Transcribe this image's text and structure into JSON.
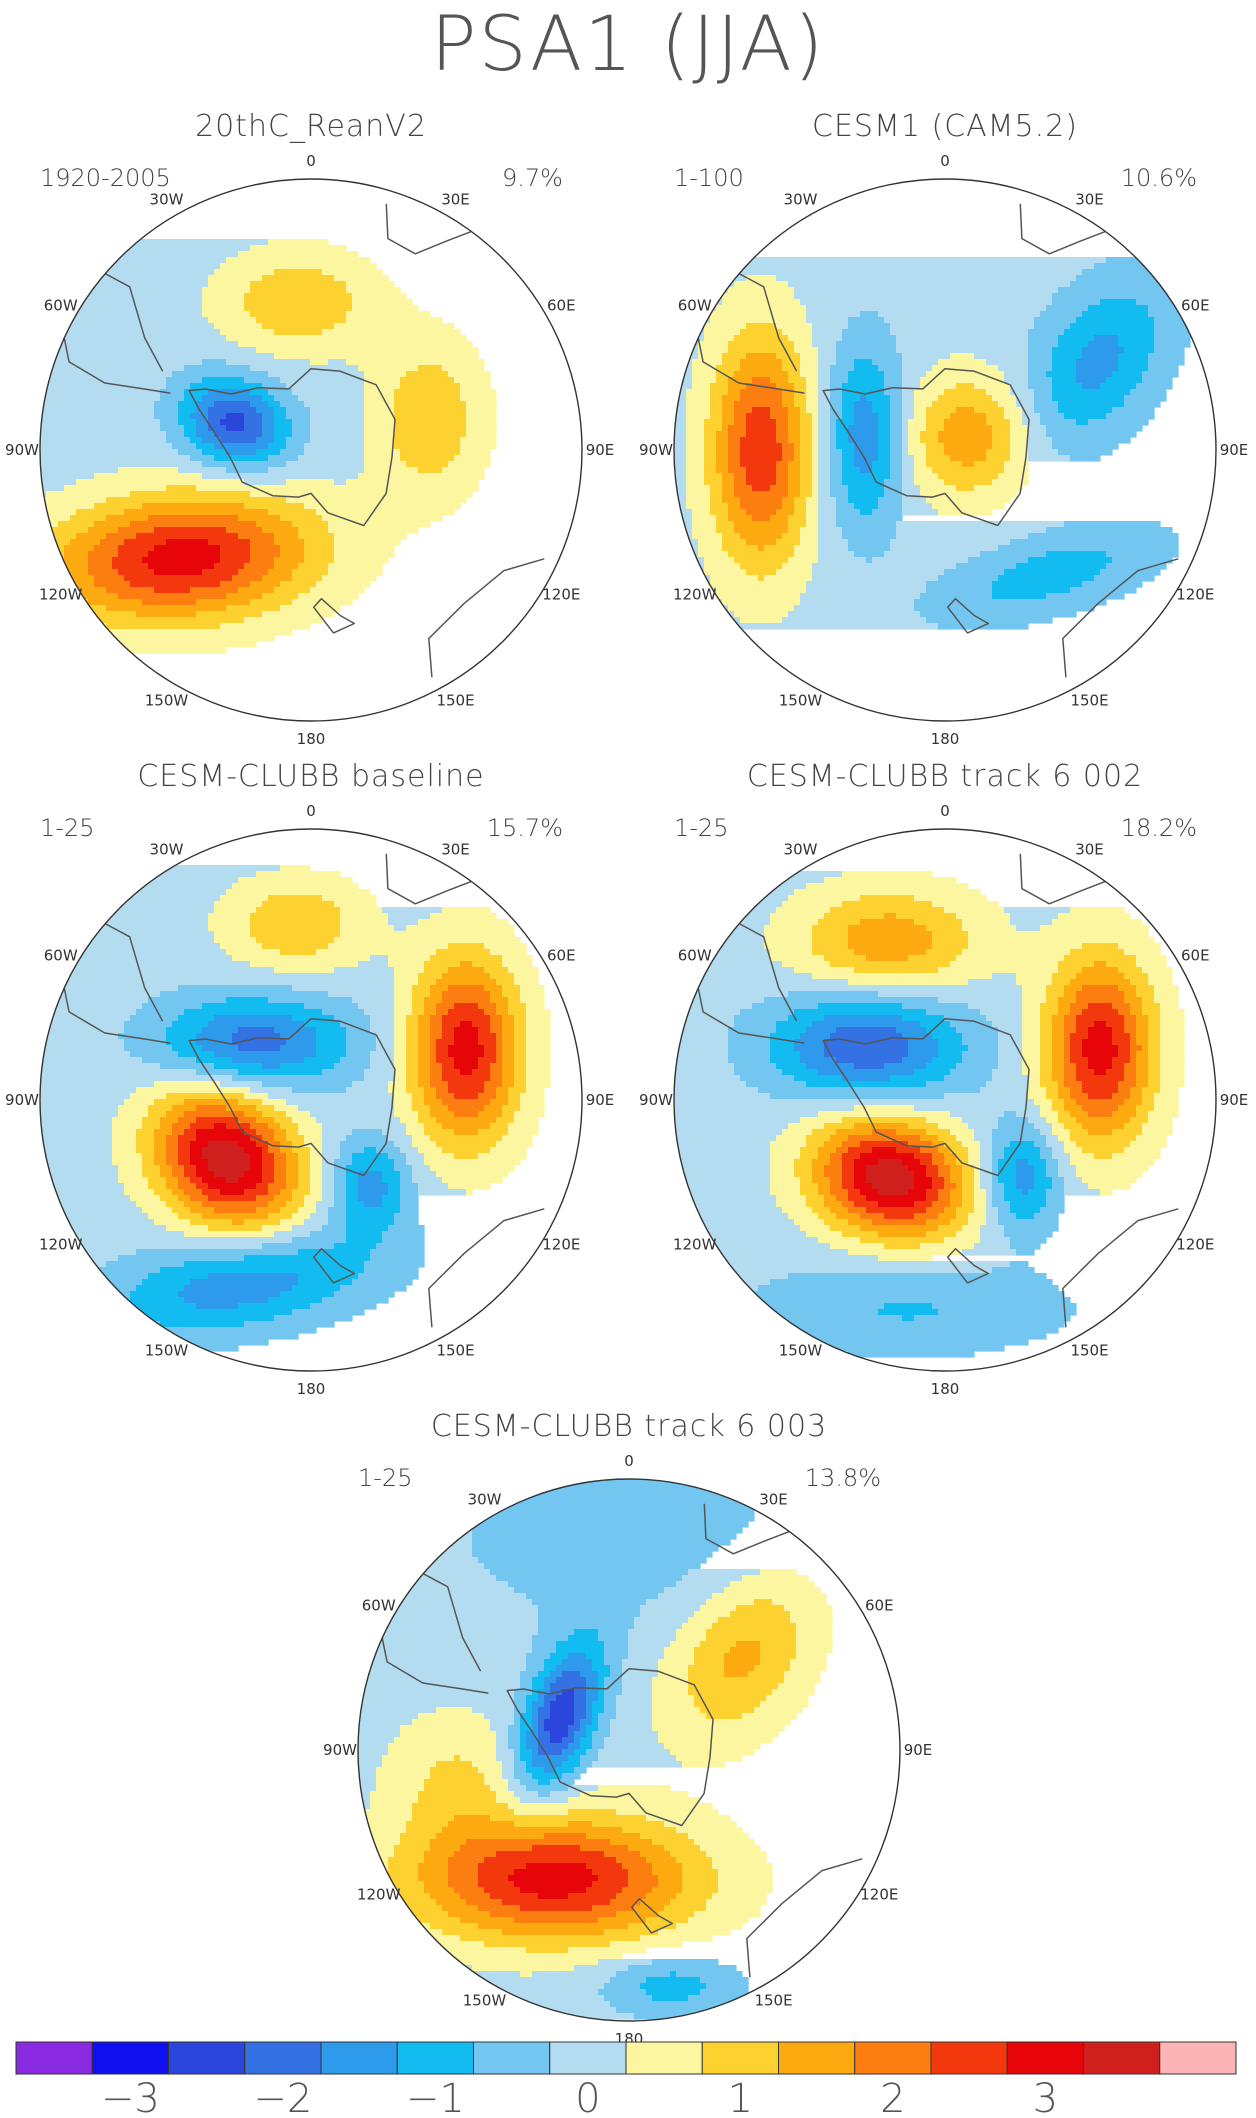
{
  "title": "PSA1 (JJA)",
  "panels": [
    {
      "title": "20thC_ReanV2",
      "period": "1920-2005",
      "variance": "9.7%",
      "blobs": [
        {
          "lon": -130,
          "r": 0.62,
          "sx": 0.34,
          "sy": 0.16,
          "rot": -5,
          "v": 3.0
        },
        {
          "lon": -70,
          "r": 0.3,
          "sx": 0.14,
          "sy": 0.11,
          "rot": 20,
          "v": -2.4
        },
        {
          "lon": -5,
          "r": 0.55,
          "sx": 0.2,
          "sy": 0.13,
          "rot": 0,
          "v": 1.2
        },
        {
          "lon": 75,
          "r": 0.45,
          "sx": 0.14,
          "sy": 0.2,
          "rot": 0,
          "v": 1.2
        }
      ]
    },
    {
      "title": "CESM1 (CAM5.2)",
      "period": "1-100",
      "variance": "10.6%",
      "blobs": [
        {
          "lon": -90,
          "r": 0.68,
          "sx": 0.13,
          "sy": 0.3,
          "rot": 0,
          "v": 2.6
        },
        {
          "lon": -80,
          "r": 0.3,
          "sx": 0.1,
          "sy": 0.24,
          "rot": 0,
          "v": -1.6
        },
        {
          "lon": 60,
          "r": 0.65,
          "sx": 0.15,
          "sy": 0.24,
          "rot": 35,
          "v": -1.4
        },
        {
          "lon": 140,
          "r": 0.6,
          "sx": 0.3,
          "sy": 0.1,
          "rot": -15,
          "v": -1.0
        },
        {
          "lon": 60,
          "r": 0.1,
          "sx": 0.16,
          "sy": 0.16,
          "rot": 0,
          "v": 1.6
        }
      ]
    },
    {
      "title": "CESM-CLUBB baseline",
      "period": "1-25",
      "variance": "15.7%",
      "blobs": [
        {
          "lon": -125,
          "r": 0.38,
          "sx": 0.2,
          "sy": 0.16,
          "rot": 40,
          "v": 3.6
        },
        {
          "lon": 72,
          "r": 0.6,
          "sx": 0.14,
          "sy": 0.24,
          "rot": 0,
          "v": 3.0
        },
        {
          "lon": -45,
          "r": 0.3,
          "sx": 0.25,
          "sy": 0.12,
          "rot": 0,
          "v": -2.0
        },
        {
          "lon": -160,
          "r": 0.72,
          "sx": 0.35,
          "sy": 0.12,
          "rot": -10,
          "v": -1.6
        },
        {
          "lon": 145,
          "r": 0.38,
          "sx": 0.1,
          "sy": 0.12,
          "rot": 0,
          "v": -1.5
        },
        {
          "lon": -5,
          "r": 0.65,
          "sx": 0.18,
          "sy": 0.12,
          "rot": 0,
          "v": 1.2
        }
      ]
    },
    {
      "title": "CESM-CLUBB track 6 002",
      "period": "1-25",
      "variance": "18.2%",
      "blobs": [
        {
          "lon": -145,
          "r": 0.35,
          "sx": 0.2,
          "sy": 0.15,
          "rot": 15,
          "v": 3.6
        },
        {
          "lon": 72,
          "r": 0.6,
          "sx": 0.14,
          "sy": 0.24,
          "rot": 0,
          "v": 3.0
        },
        {
          "lon": -55,
          "r": 0.35,
          "sx": 0.25,
          "sy": 0.14,
          "rot": 0,
          "v": -2.2
        },
        {
          "lon": 135,
          "r": 0.4,
          "sx": 0.1,
          "sy": 0.14,
          "rot": 0,
          "v": -1.6
        },
        {
          "lon": -20,
          "r": 0.62,
          "sx": 0.24,
          "sy": 0.14,
          "rot": 0,
          "v": 1.6
        },
        {
          "lon": -170,
          "r": 0.78,
          "sx": 0.4,
          "sy": 0.12,
          "rot": 0,
          "v": -0.8
        }
      ]
    },
    {
      "title": "CESM-CLUBB track 6 003",
      "period": "1-25",
      "variance": "13.8%",
      "blobs": [
        {
          "lon": -150,
          "r": 0.55,
          "sx": 0.36,
          "sy": 0.16,
          "rot": 0,
          "v": 3.0
        },
        {
          "lon": -65,
          "r": 0.28,
          "sx": 0.09,
          "sy": 0.2,
          "rot": 20,
          "v": -2.6
        },
        {
          "lon": 50,
          "r": 0.55,
          "sx": 0.16,
          "sy": 0.24,
          "rot": 35,
          "v": 1.4
        },
        {
          "lon": -100,
          "r": 0.65,
          "sx": 0.18,
          "sy": 0.18,
          "rot": 0,
          "v": 0.8
        },
        {
          "lon": 170,
          "r": 0.88,
          "sx": 0.18,
          "sy": 0.08,
          "rot": 0,
          "v": -1.0
        },
        {
          "lon": 0,
          "r": 0.8,
          "sx": 0.5,
          "sy": 0.25,
          "rot": 0,
          "v": -0.5
        }
      ]
    }
  ],
  "lon_labels": [
    "0",
    "30E",
    "60E",
    "90E",
    "120E",
    "150E",
    "180",
    "150W",
    "120W",
    "90W",
    "60W",
    "30W"
  ],
  "colorbar": {
    "levels": [
      -3.25,
      -2.75,
      -2.25,
      -1.75,
      -1.25,
      -0.75,
      -0.25,
      0.25,
      0.75,
      1.25,
      1.75,
      2.25,
      2.75,
      3.25
    ],
    "colors": [
      "#8a2be2",
      "#1010ee",
      "#2a46dc",
      "#3472e4",
      "#2e9aec",
      "#12bcf0",
      "#72c6f0",
      "#b4dcf0",
      "#fdf6a0",
      "#fdd230",
      "#fdaa10",
      "#fd7e10",
      "#f4380e",
      "#e6060a",
      "#d0201e",
      "#fdb4b6"
    ],
    "tick_labels": [
      "-3",
      "-2",
      "-1",
      "0",
      "1",
      "2",
      "3"
    ],
    "tick_values": [
      -3,
      -2,
      -1,
      0,
      1,
      2,
      3
    ]
  }
}
